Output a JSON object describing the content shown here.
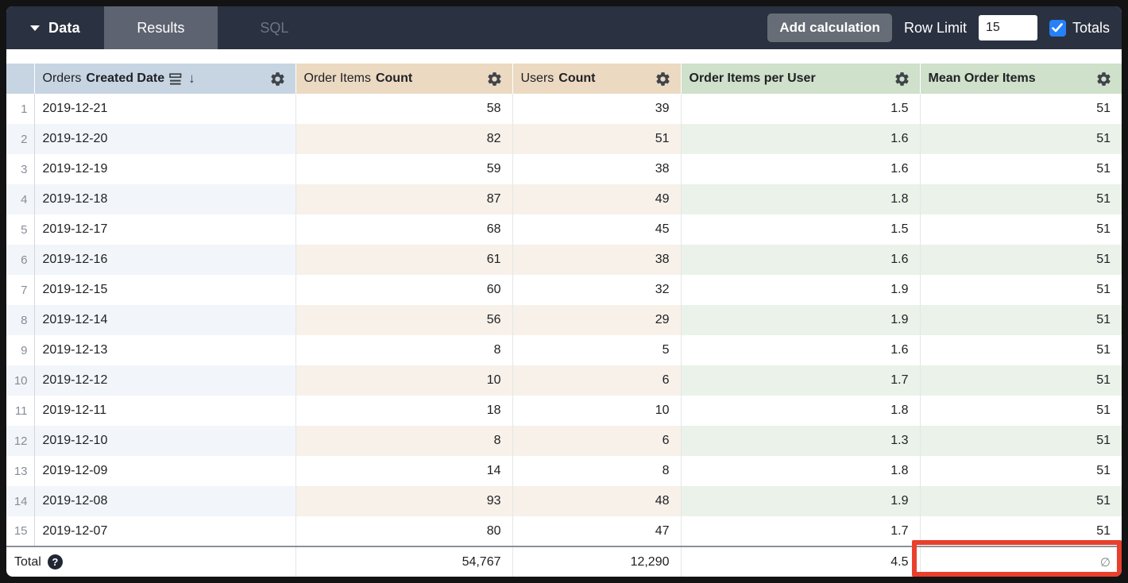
{
  "topbar": {
    "data_label": "Data",
    "tabs": {
      "results": "Results",
      "sql": "SQL"
    },
    "add_calculation_label": "Add calculation",
    "row_limit_label": "Row Limit",
    "row_limit_value": "15",
    "totals_label": "Totals",
    "totals_checked": true
  },
  "colors": {
    "topbar_bg": "#2a3140",
    "active_tab_bg": "#5d6370",
    "dimension_header_bg": "#c7d5e3",
    "measure_header_bg": "#ebd9c2",
    "calculation_header_bg": "#cfe0cb",
    "checkbox_blue": "#2680f7",
    "annotation_red": "#e8402c"
  },
  "table": {
    "columns": [
      {
        "id": "orders_created_date",
        "label_regular": "Orders",
        "label_bold": "Created Date",
        "type": "dimension",
        "icons": [
          "fill-icon",
          "sort-desc-arrow",
          "gear-icon"
        ]
      },
      {
        "id": "order_items_count",
        "label_regular": "Order Items",
        "label_bold": "Count",
        "type": "measure",
        "icons": [
          "gear-icon"
        ]
      },
      {
        "id": "users_count",
        "label_regular": "Users",
        "label_bold": "Count",
        "type": "measure",
        "icons": [
          "gear-icon"
        ]
      },
      {
        "id": "order_items_per_user",
        "label_regular": "",
        "label_bold": "Order Items per User",
        "type": "table_calculation",
        "icons": [
          "gear-icon"
        ]
      },
      {
        "id": "mean_order_items",
        "label_regular": "",
        "label_bold": "Mean Order Items",
        "type": "table_calculation",
        "icons": [
          "gear-icon"
        ]
      }
    ],
    "rows": [
      {
        "num": "1",
        "date": "2019-12-21",
        "order_items_count": "58",
        "users_count": "39",
        "order_items_per_user": "1.5",
        "mean_order_items": "51"
      },
      {
        "num": "2",
        "date": "2019-12-20",
        "order_items_count": "82",
        "users_count": "51",
        "order_items_per_user": "1.6",
        "mean_order_items": "51"
      },
      {
        "num": "3",
        "date": "2019-12-19",
        "order_items_count": "59",
        "users_count": "38",
        "order_items_per_user": "1.6",
        "mean_order_items": "51"
      },
      {
        "num": "4",
        "date": "2019-12-18",
        "order_items_count": "87",
        "users_count": "49",
        "order_items_per_user": "1.8",
        "mean_order_items": "51"
      },
      {
        "num": "5",
        "date": "2019-12-17",
        "order_items_count": "68",
        "users_count": "45",
        "order_items_per_user": "1.5",
        "mean_order_items": "51"
      },
      {
        "num": "6",
        "date": "2019-12-16",
        "order_items_count": "61",
        "users_count": "38",
        "order_items_per_user": "1.6",
        "mean_order_items": "51"
      },
      {
        "num": "7",
        "date": "2019-12-15",
        "order_items_count": "60",
        "users_count": "32",
        "order_items_per_user": "1.9",
        "mean_order_items": "51"
      },
      {
        "num": "8",
        "date": "2019-12-14",
        "order_items_count": "56",
        "users_count": "29",
        "order_items_per_user": "1.9",
        "mean_order_items": "51"
      },
      {
        "num": "9",
        "date": "2019-12-13",
        "order_items_count": "8",
        "users_count": "5",
        "order_items_per_user": "1.6",
        "mean_order_items": "51"
      },
      {
        "num": "10",
        "date": "2019-12-12",
        "order_items_count": "10",
        "users_count": "6",
        "order_items_per_user": "1.7",
        "mean_order_items": "51"
      },
      {
        "num": "11",
        "date": "2019-12-11",
        "order_items_count": "18",
        "users_count": "10",
        "order_items_per_user": "1.8",
        "mean_order_items": "51"
      },
      {
        "num": "12",
        "date": "2019-12-10",
        "order_items_count": "8",
        "users_count": "6",
        "order_items_per_user": "1.3",
        "mean_order_items": "51"
      },
      {
        "num": "13",
        "date": "2019-12-09",
        "order_items_count": "14",
        "users_count": "8",
        "order_items_per_user": "1.8",
        "mean_order_items": "51"
      },
      {
        "num": "14",
        "date": "2019-12-08",
        "order_items_count": "93",
        "users_count": "48",
        "order_items_per_user": "1.9",
        "mean_order_items": "51"
      },
      {
        "num": "15",
        "date": "2019-12-07",
        "order_items_count": "80",
        "users_count": "47",
        "order_items_per_user": "1.7",
        "mean_order_items": "51"
      }
    ],
    "total": {
      "label": "Total",
      "order_items_count": "54,767",
      "users_count": "12,290",
      "order_items_per_user": "4.5",
      "mean_order_items": "∅"
    }
  }
}
